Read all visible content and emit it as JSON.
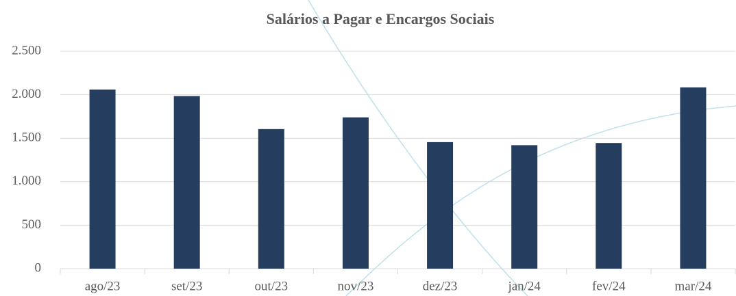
{
  "chart_data": {
    "type": "bar",
    "title": "Salários a Pagar e Encargos Sociais",
    "categories": [
      "ago/23",
      "set/23",
      "out/23",
      "nov/23",
      "dez/23",
      "jan/24",
      "fev/24",
      "mar/24"
    ],
    "values": [
      2060,
      1985,
      1605,
      1740,
      1455,
      1420,
      1445,
      2085
    ],
    "color": "#253e5f",
    "ylim": [
      0,
      2500
    ],
    "yticks": [
      0,
      500,
      {
        "value": 1000,
        "label": "1.000"
      },
      {
        "value": 1500,
        "label": "1.500"
      },
      {
        "value": 2000,
        "label": "2.000"
      },
      {
        "value": 2500,
        "label": "2.500"
      }
    ],
    "grid": true
  }
}
